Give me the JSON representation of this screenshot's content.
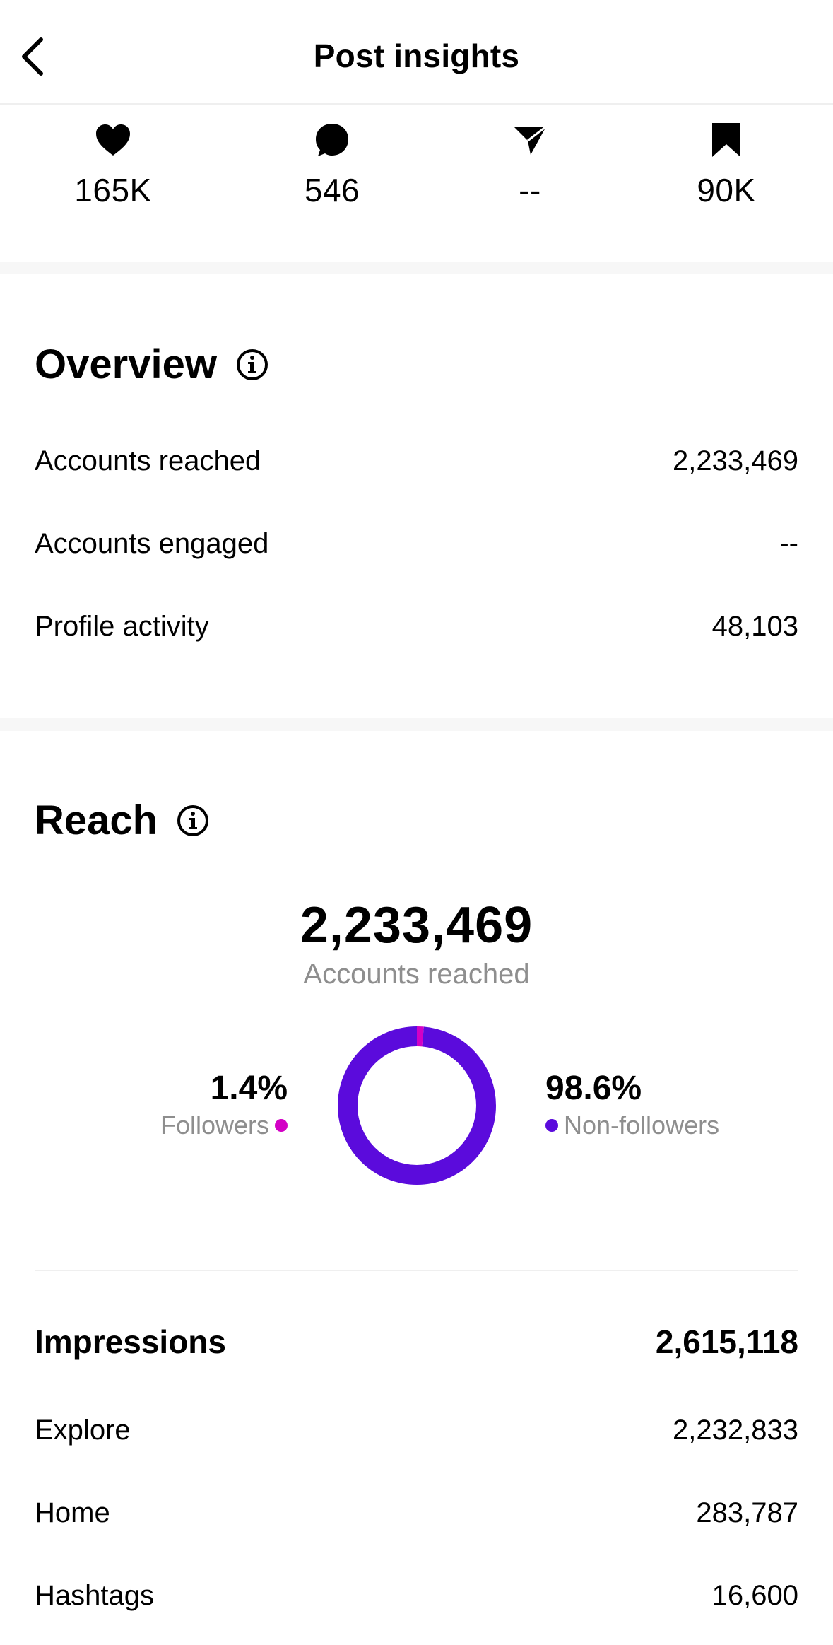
{
  "header": {
    "title": "Post insights",
    "back_icon": "chevron-left-icon"
  },
  "stats": [
    {
      "icon": "heart-icon",
      "value": "165K"
    },
    {
      "icon": "comment-icon",
      "value": "546"
    },
    {
      "icon": "send-icon",
      "value": "--"
    },
    {
      "icon": "bookmark-icon",
      "value": "90K"
    }
  ],
  "overview": {
    "title": "Overview",
    "rows": [
      {
        "label": "Accounts reached",
        "value": "2,233,469"
      },
      {
        "label": "Accounts engaged",
        "value": "--"
      },
      {
        "label": "Profile activity",
        "value": "48,103"
      }
    ]
  },
  "reach": {
    "title": "Reach",
    "total": "2,233,469",
    "caption": "Accounts reached",
    "followers": {
      "percent": "1.4%",
      "label": "Followers",
      "fraction": 0.014,
      "color": "#d300c5"
    },
    "non_followers": {
      "percent": "98.6%",
      "label": "Non-followers",
      "fraction": 0.986,
      "color": "#5b0bdc"
    }
  },
  "impressions": {
    "title": "Impressions",
    "total": "2,615,118",
    "rows": [
      {
        "label": "Explore",
        "value": "2,232,833"
      },
      {
        "label": "Home",
        "value": "283,787"
      },
      {
        "label": "Hashtags",
        "value": "16,600"
      }
    ]
  }
}
